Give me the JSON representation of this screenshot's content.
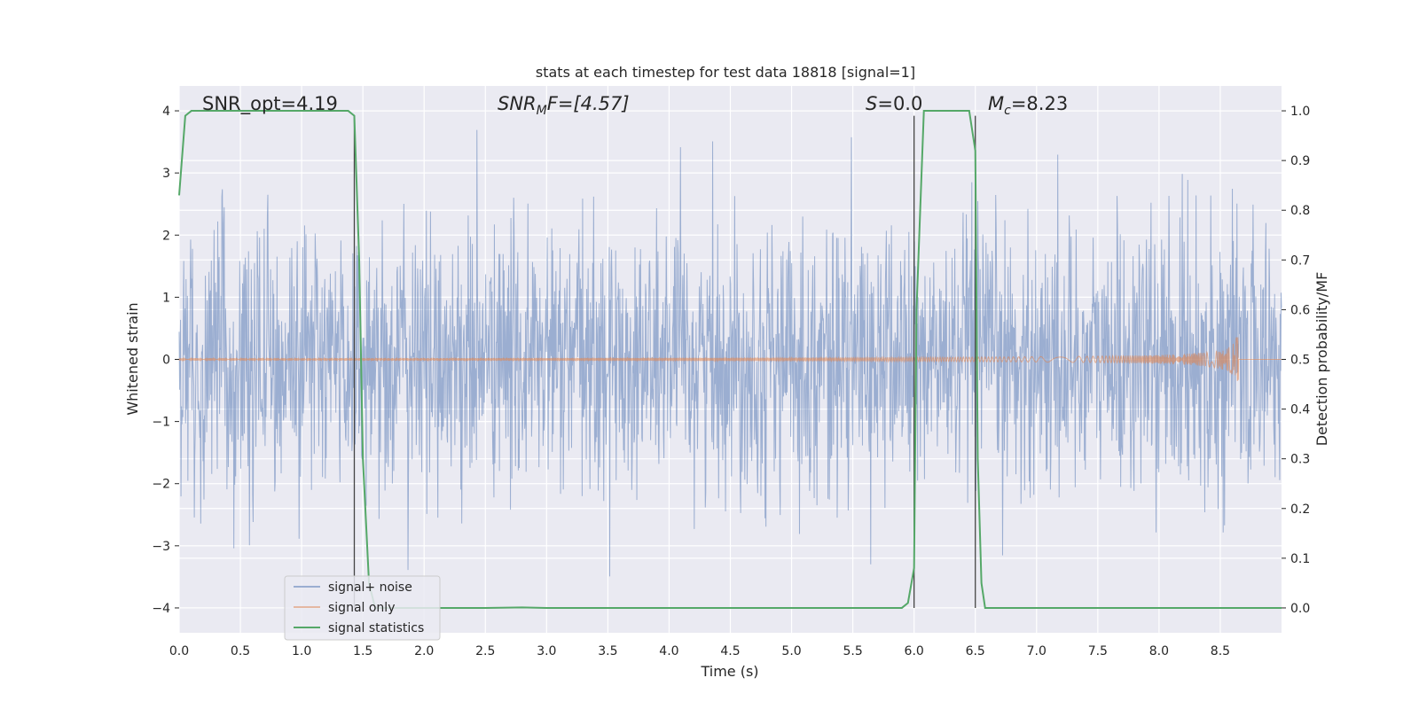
{
  "chart_data": {
    "type": "line",
    "title": "stats at each timestep for test data 18818 [signal=1]",
    "xlabel": "Time (s)",
    "ylabel_left": "Whitened strain",
    "ylabel_right": "Detection probability/MF",
    "xlim": [
      0.0,
      9.0
    ],
    "ylim_left": [
      -4.4,
      4.4
    ],
    "ylim_right": [
      -0.05,
      1.05
    ],
    "x_ticks": [
      "0.0",
      "0.5",
      "1.0",
      "1.5",
      "2.0",
      "2.5",
      "3.0",
      "3.5",
      "4.0",
      "4.5",
      "5.0",
      "5.5",
      "6.0",
      "6.5",
      "7.0",
      "7.5",
      "8.0",
      "8.5"
    ],
    "y_ticks_left": [
      "4",
      "3",
      "2",
      "1",
      "0",
      "−1",
      "−2",
      "−3",
      "−4"
    ],
    "y_ticks_right": [
      "1.0",
      "0.9",
      "0.8",
      "0.7",
      "0.6",
      "0.5",
      "0.4",
      "0.3",
      "0.2",
      "0.1",
      "0.0"
    ],
    "grid": true,
    "legend_position": "lower-left",
    "annotations": {
      "snr_opt": "SNR_opt=4.19",
      "snr_mf_main": "SNR",
      "snr_mf_sub": "M",
      "snr_mf_rest": "F=[4.57]",
      "s_main": "S",
      "s_rest": "=0.0",
      "mc_main": "M",
      "mc_sub": "c",
      "mc_rest": "=8.23"
    },
    "vlines_x": [
      1.43,
      6.0,
      6.5
    ],
    "series": [
      {
        "name": "signal+ noise",
        "color": "#4c72b0",
        "description": "whitened noise, approx amplitude ±1.5 with spikes to ±4"
      },
      {
        "name": "signal only",
        "color": "#dd8452",
        "chirp_end_time": 8.65,
        "chirp_peak_amplitude": 0.5
      },
      {
        "name": "signal statistics",
        "color": "#55a868",
        "x": [
          0.0,
          0.05,
          0.1,
          0.2,
          0.5,
          1.0,
          1.3,
          1.38,
          1.43,
          1.47,
          1.5,
          1.55,
          1.6,
          2.0,
          2.5,
          2.8,
          3.0,
          4.0,
          5.0,
          5.5,
          5.9,
          5.95,
          6.0,
          6.02,
          6.08,
          6.2,
          6.4,
          6.45,
          6.5,
          6.52,
          6.55,
          6.58,
          7.0,
          8.0,
          9.0
        ],
        "y": [
          0.83,
          0.99,
          1.0,
          1.0,
          1.0,
          1.0,
          1.0,
          1.0,
          0.99,
          0.7,
          0.3,
          0.05,
          0.0,
          0.0,
          0.0,
          0.001,
          0.0,
          0.0,
          0.0,
          0.0,
          0.0,
          0.01,
          0.08,
          0.6,
          1.0,
          1.0,
          1.0,
          1.0,
          0.92,
          0.3,
          0.05,
          0.0,
          0.0,
          0.0,
          0.0
        ]
      }
    ]
  }
}
